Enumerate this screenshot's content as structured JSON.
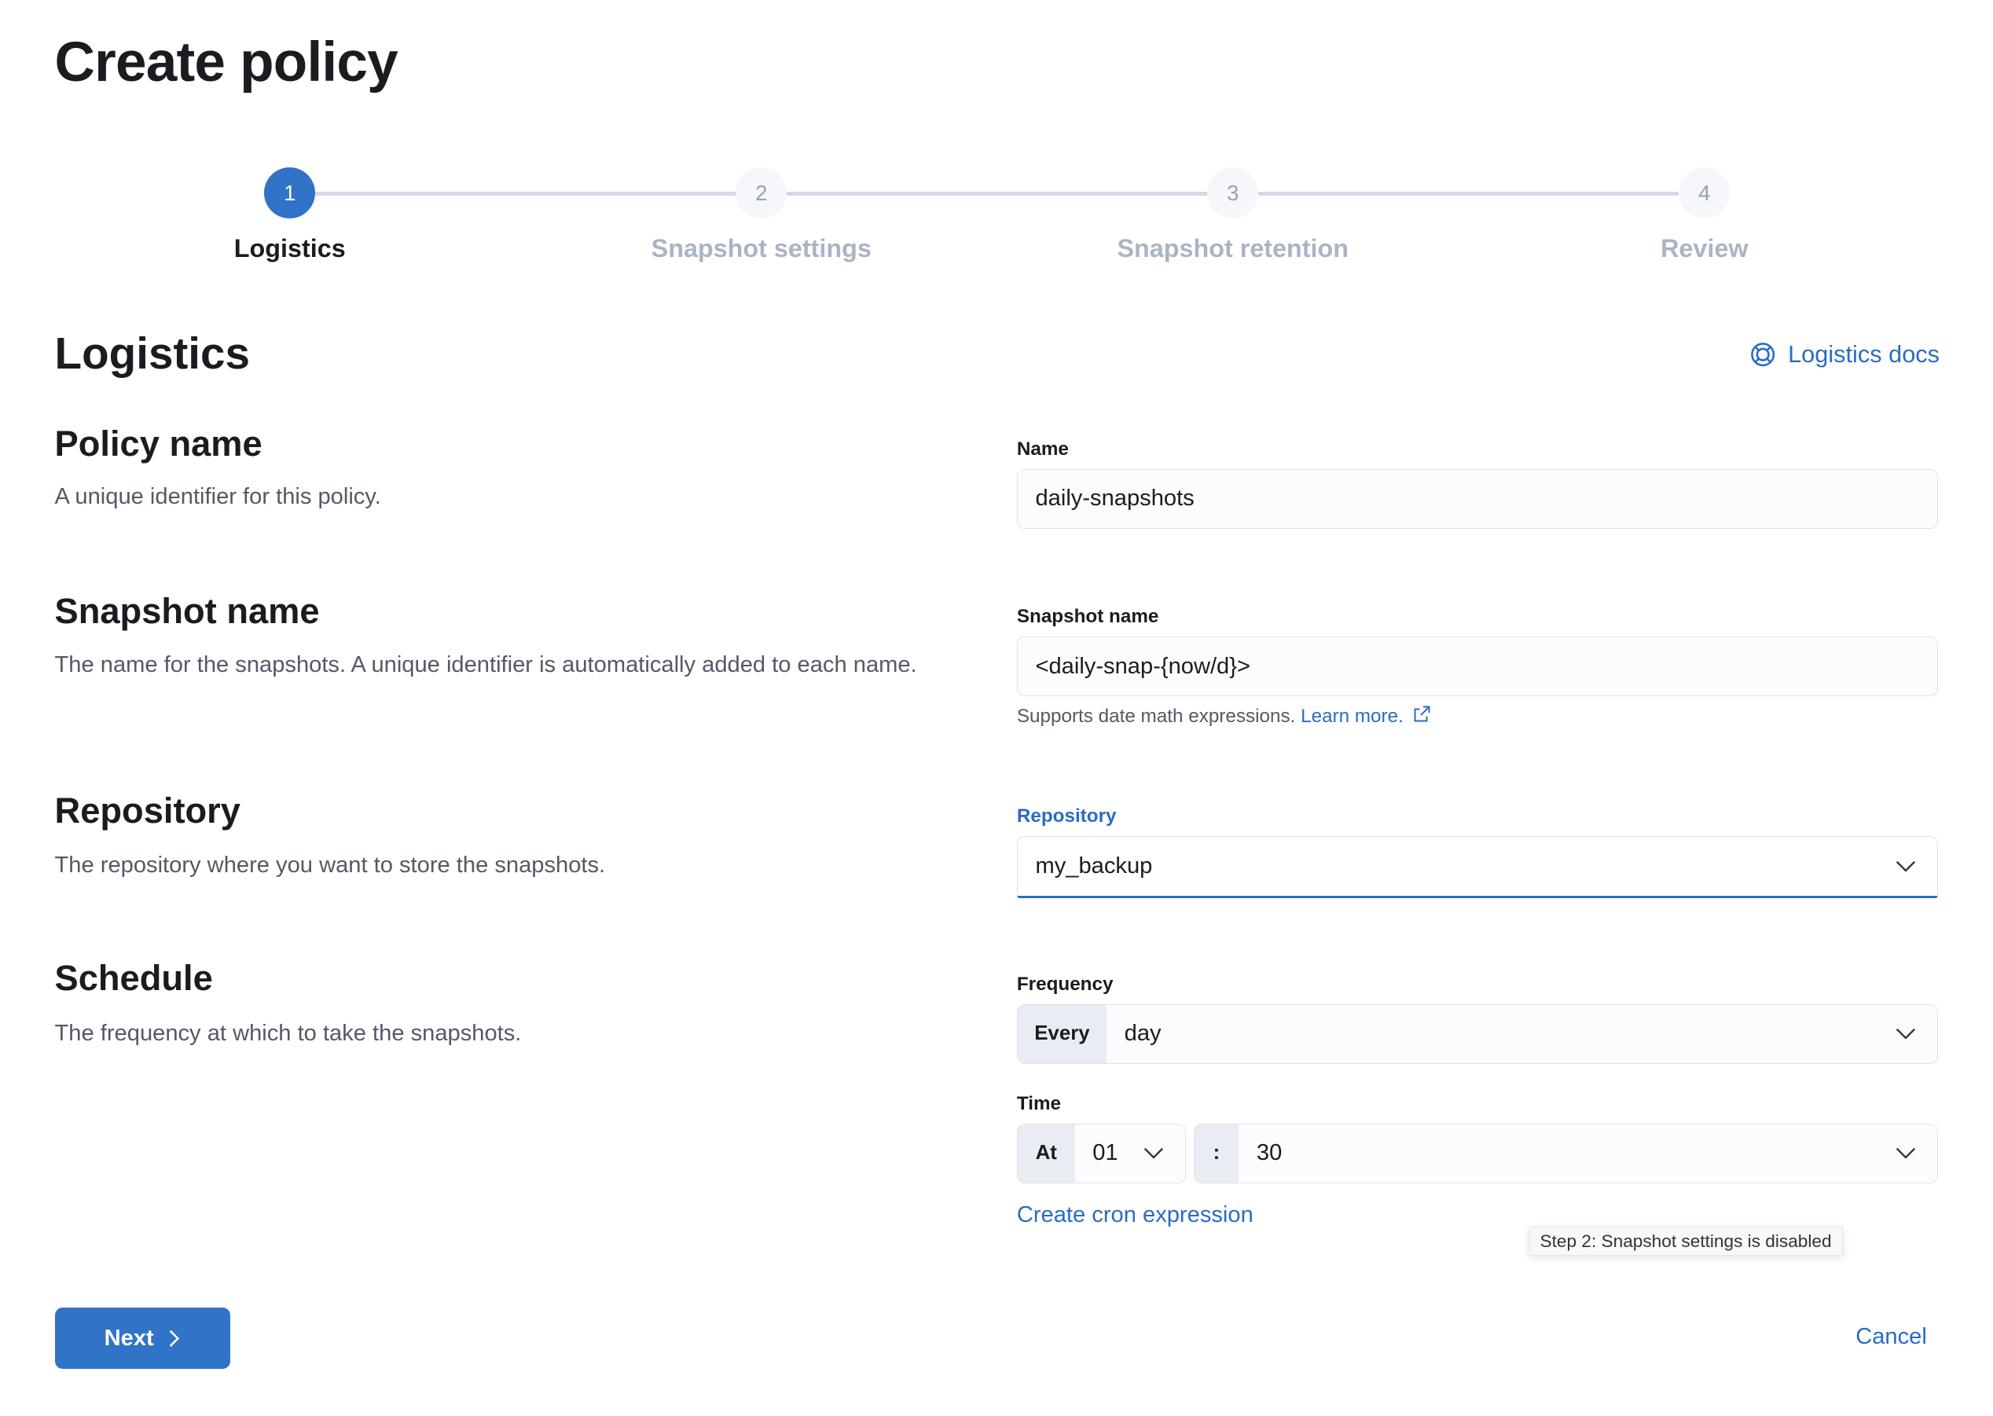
{
  "page": {
    "title": "Create policy"
  },
  "steps": [
    {
      "number": "1",
      "label": "Logistics",
      "state": "current"
    },
    {
      "number": "2",
      "label": "Snapshot settings",
      "state": "disabled"
    },
    {
      "number": "3",
      "label": "Snapshot retention",
      "state": "disabled"
    },
    {
      "number": "4",
      "label": "Review",
      "state": "disabled"
    }
  ],
  "section": {
    "title": "Logistics",
    "docs_link": "Logistics docs",
    "docs_icon": "lifebuoy-icon"
  },
  "fields": {
    "policy_name": {
      "heading": "Policy name",
      "description": "A unique identifier for this policy.",
      "label": "Name",
      "value": "daily-snapshots"
    },
    "snapshot_name": {
      "heading": "Snapshot name",
      "description": "The name for the snapshots. A unique identifier is automatically added to each name.",
      "label": "Snapshot name",
      "value": "<daily-snap-{now/d}>",
      "help": "Supports date math expressions.",
      "help_link": "Learn more."
    },
    "repository": {
      "heading": "Repository",
      "description": "The repository where you want to store the snapshots.",
      "label": "Repository",
      "value": "my_backup"
    },
    "schedule": {
      "heading": "Schedule",
      "description": "The frequency at which to take the snapshots.",
      "frequency_label": "Frequency",
      "frequency_prepend": "Every",
      "frequency_value": "day",
      "time_label": "Time",
      "time_prepend": "At",
      "hour_value": "01",
      "separator": ":",
      "minute_value": "30",
      "cron_link": "Create cron expression"
    }
  },
  "tooltip": "Step 2: Snapshot settings is disabled",
  "footer": {
    "next": "Next",
    "cancel": "Cancel"
  },
  "colors": {
    "primary": "#3073c7",
    "link": "#2b6cc2"
  }
}
